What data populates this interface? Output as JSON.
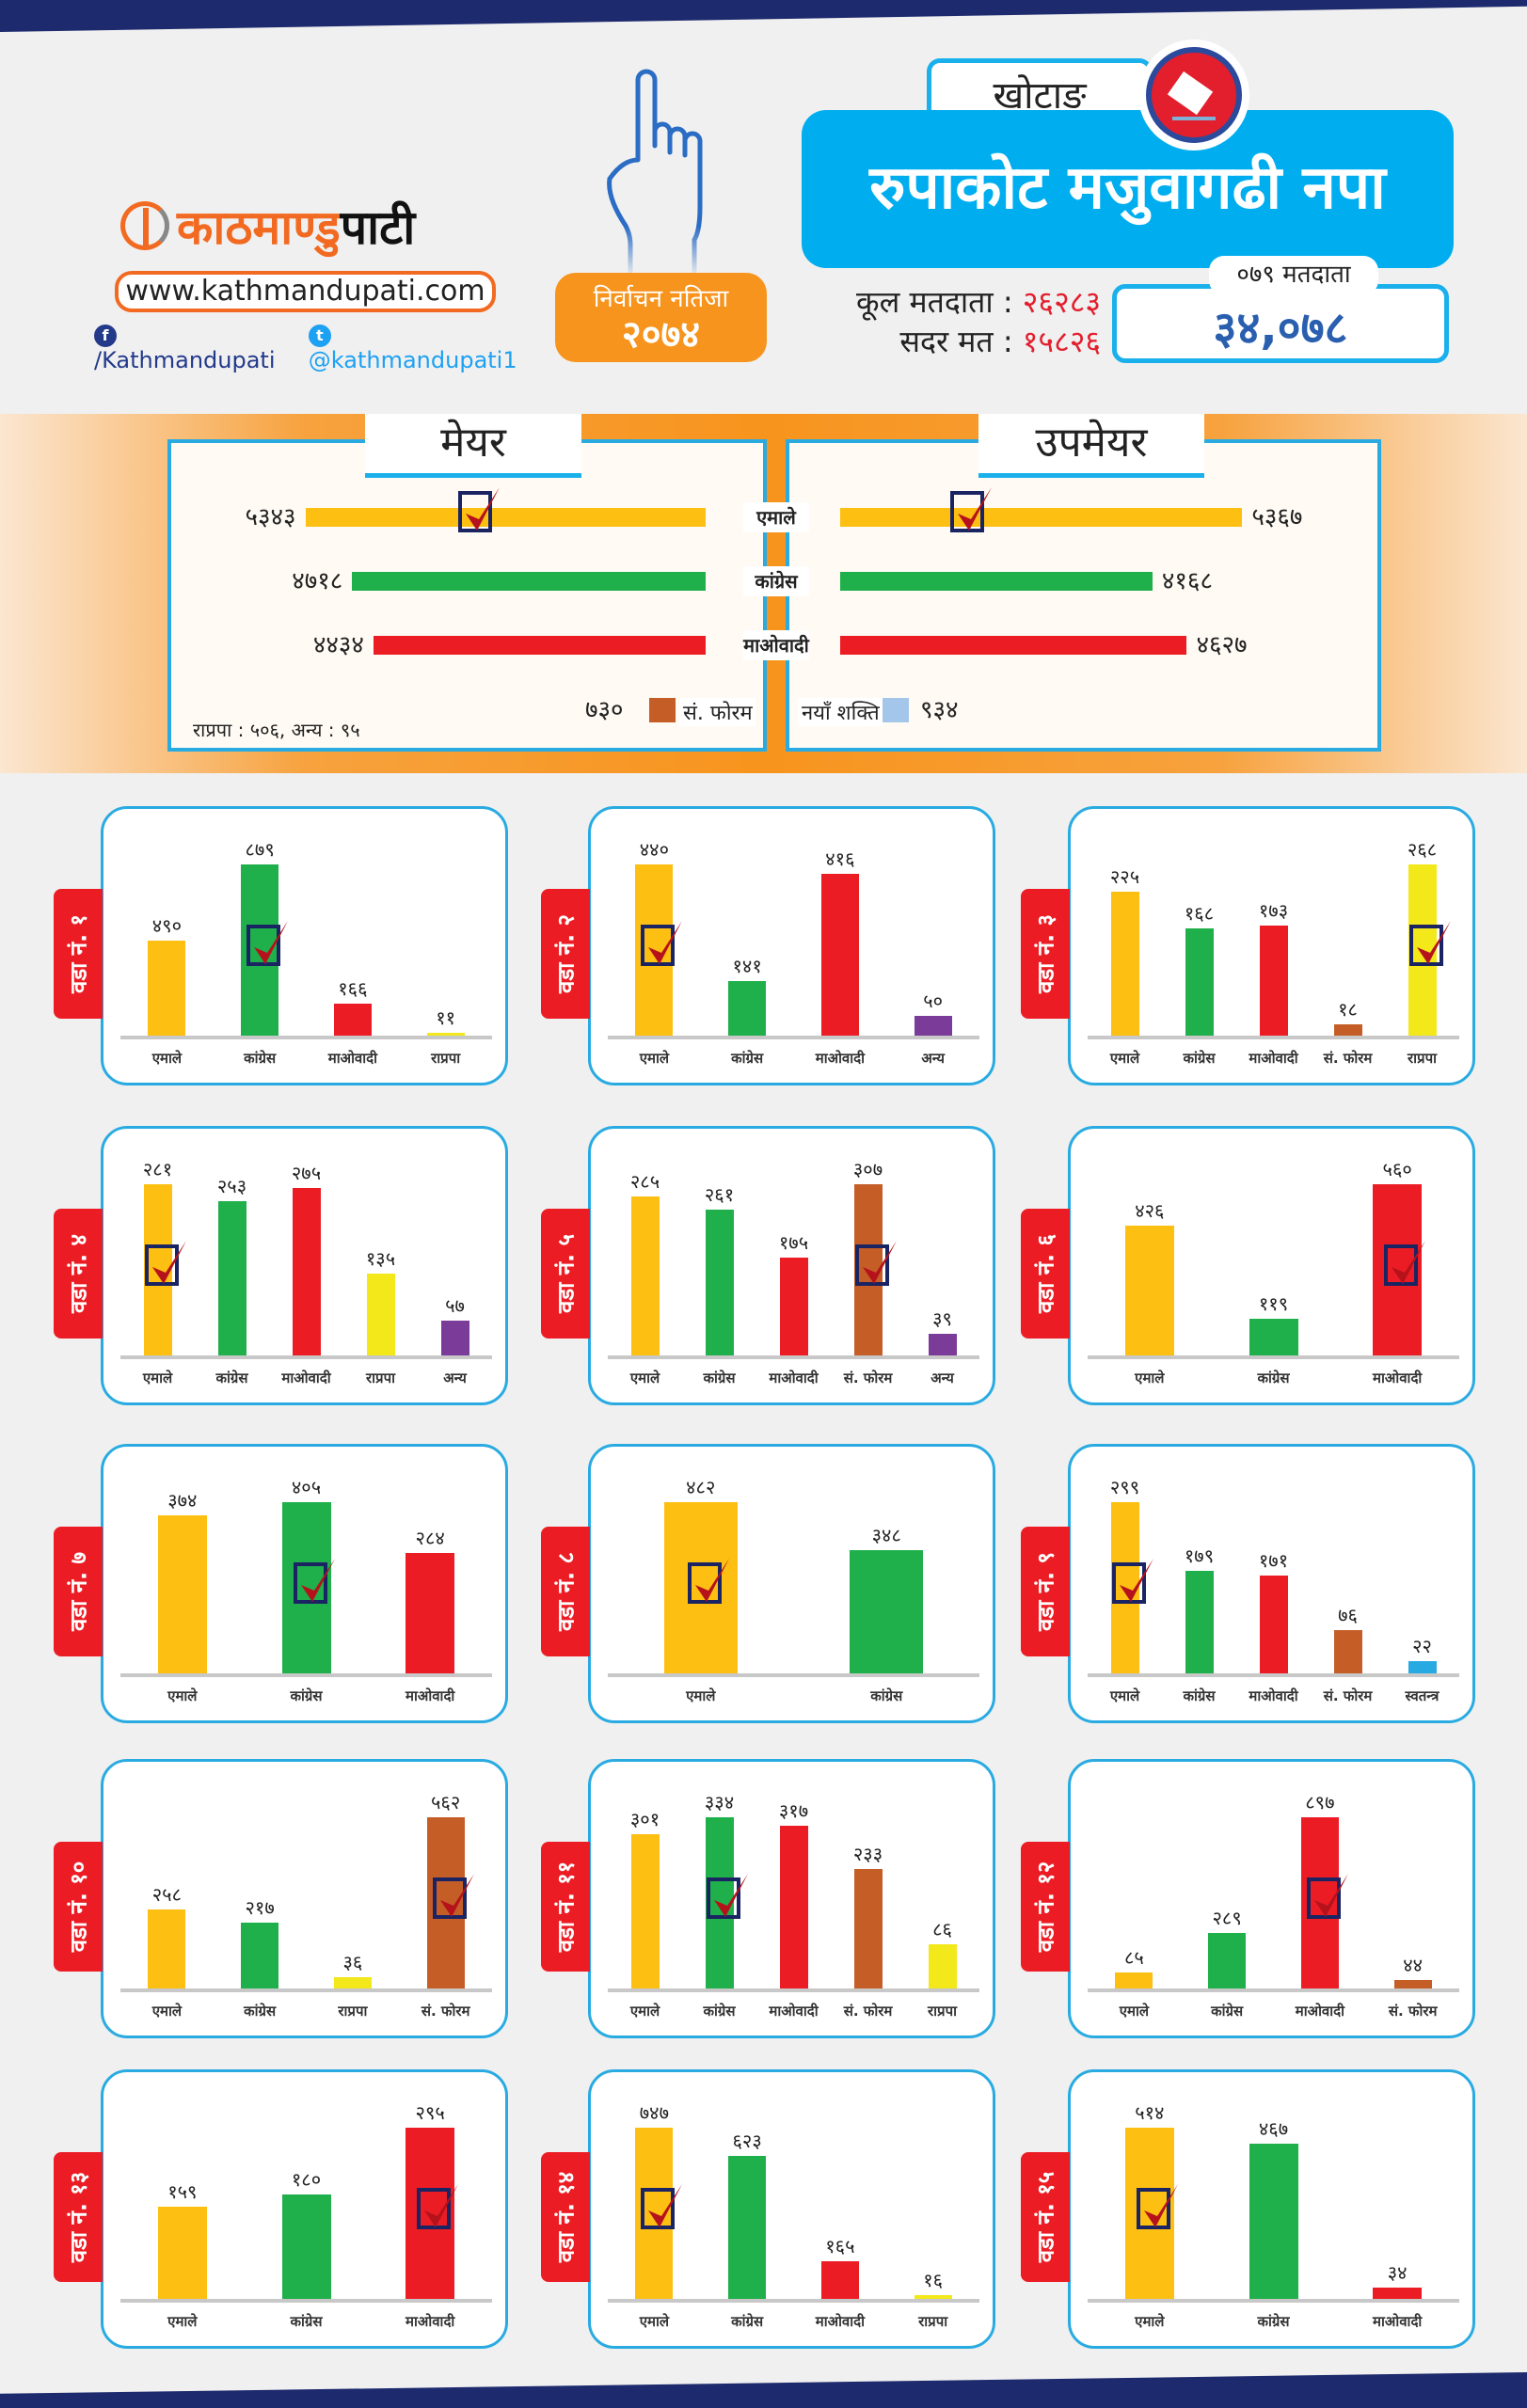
{
  "brand": {
    "name_orange": "काठमाण्डु",
    "name_black": "पाटी",
    "url": "www.kathmandupati.com",
    "facebook": "/Kathmandupati",
    "twitter": "@kathmandupati1"
  },
  "result_badge": {
    "line1": "निर्वाचन नतिजा",
    "line2": "२०७४"
  },
  "district": "खोटाङ",
  "municipality": "रुपाकोट मजुवागढी नपा",
  "stats": {
    "total_label": "कूल मतदाता :",
    "total_value": "२६२८३",
    "valid_label": "सदर मत :",
    "valid_value": "१५८२६"
  },
  "voters_079": {
    "label": "०७९ मतदाता",
    "value": "३४,०७८"
  },
  "colors": {
    "एमाले": "#fdbf12",
    "कांग्रेस": "#1fb04b",
    "माओवादी": "#ec1c24",
    "राप्रपा": "#f2e81a",
    "अन्य": "#7a3b99",
    "सं. फोरम": "#c55d27",
    "स्वतन्त्र": "#27aae1",
    "नयाँ शक्ति": "#a3c6ea",
    "accent": "#00aeef",
    "orange": "#f7941d"
  },
  "icons": [
    "hand-vote-icon",
    "ballot-box-icon",
    "facebook-icon",
    "twitter-icon",
    "check-box-icon"
  ],
  "chart_data": [
    {
      "type": "bar",
      "orientation": "horizontal",
      "title": "मेयर",
      "categories": [
        "एमाले",
        "कांग्रेस",
        "माओवादी"
      ],
      "values": [
        5343,
        4718,
        4434
      ],
      "value_labels": [
        "५३४३",
        "४७१८",
        "४४३४"
      ],
      "winner": 0,
      "extra": {
        "label": "सं. फोरम",
        "value": 730,
        "value_label": "७३०"
      },
      "note": "राप्रपा : ५०६, अन्य : ९५"
    },
    {
      "type": "bar",
      "orientation": "horizontal",
      "title": "उपमेयर",
      "categories": [
        "एमाले",
        "कांग्रेस",
        "माओवादी"
      ],
      "values": [
        5367,
        4168,
        4627
      ],
      "value_labels": [
        "५३६७",
        "४१६८",
        "४६२७"
      ],
      "winner": 0,
      "extra": {
        "label": "नयाँ शक्ति",
        "value": 934,
        "value_label": "९३४"
      }
    },
    {
      "type": "bar",
      "title": "वडा नं. १",
      "categories": [
        "एमाले",
        "कांग्रेस",
        "माओवादी",
        "राप्रपा"
      ],
      "values": [
        490,
        879,
        166,
        11
      ],
      "value_labels": [
        "४९०",
        "८७९",
        "१६६",
        "११"
      ],
      "winner": 1
    },
    {
      "type": "bar",
      "title": "वडा नं. २",
      "categories": [
        "एमाले",
        "कांग्रेस",
        "माओवादी",
        "अन्य"
      ],
      "values": [
        440,
        141,
        416,
        50
      ],
      "value_labels": [
        "४४०",
        "१४१",
        "४१६",
        "५०"
      ],
      "winner": 0
    },
    {
      "type": "bar",
      "title": "वडा नं. ३",
      "categories": [
        "एमाले",
        "कांग्रेस",
        "माओवादी",
        "सं. फोरम",
        "राप्रपा"
      ],
      "values": [
        225,
        168,
        173,
        18,
        268
      ],
      "value_labels": [
        "२२५",
        "१६८",
        "१७३",
        "१८",
        "२६८"
      ],
      "winner": 4
    },
    {
      "type": "bar",
      "title": "वडा नं. ४",
      "categories": [
        "एमाले",
        "कांग्रेस",
        "माओवादी",
        "राप्रपा",
        "अन्य"
      ],
      "values": [
        281,
        253,
        275,
        135,
        57
      ],
      "value_labels": [
        "२८१",
        "२५३",
        "२७५",
        "१३५",
        "५७"
      ],
      "winner": 0
    },
    {
      "type": "bar",
      "title": "वडा नं. ५",
      "categories": [
        "एमाले",
        "कांग्रेस",
        "माओवादी",
        "सं. फोरम",
        "अन्य"
      ],
      "values": [
        285,
        261,
        175,
        307,
        39
      ],
      "value_labels": [
        "२८५",
        "२६१",
        "१७५",
        "३०७",
        "३९"
      ],
      "winner": 3
    },
    {
      "type": "bar",
      "title": "वडा नं. ६",
      "categories": [
        "एमाले",
        "कांग्रेस",
        "माओवादी"
      ],
      "values": [
        426,
        119,
        560
      ],
      "value_labels": [
        "४२६",
        "११९",
        "५६०"
      ],
      "winner": 2
    },
    {
      "type": "bar",
      "title": "वडा नं. ७",
      "categories": [
        "एमाले",
        "कांग्रेस",
        "माओवादी"
      ],
      "values": [
        374,
        405,
        284
      ],
      "value_labels": [
        "३७४",
        "४०५",
        "२८४"
      ],
      "winner": 1
    },
    {
      "type": "bar",
      "title": "वडा नं. ८",
      "categories": [
        "एमाले",
        "कांग्रेस"
      ],
      "values": [
        482,
        348
      ],
      "value_labels": [
        "४८२",
        "३४८"
      ],
      "winner": 0
    },
    {
      "type": "bar",
      "title": "वडा नं. ९",
      "categories": [
        "एमाले",
        "कांग्रेस",
        "माओवादी",
        "सं. फोरम",
        "स्वतन्त्र"
      ],
      "values": [
        299,
        179,
        171,
        76,
        22
      ],
      "value_labels": [
        "२९९",
        "१७९",
        "१७१",
        "७६",
        "२२"
      ],
      "winner": 0
    },
    {
      "type": "bar",
      "title": "वडा नं. १०",
      "categories": [
        "एमाले",
        "कांग्रेस",
        "राप्रपा",
        "सं. फोरम"
      ],
      "values": [
        258,
        217,
        36,
        562
      ],
      "value_labels": [
        "२५८",
        "२१७",
        "३६",
        "५६२"
      ],
      "winner": 3
    },
    {
      "type": "bar",
      "title": "वडा नं. ११",
      "categories": [
        "एमाले",
        "कांग्रेस",
        "माओवादी",
        "सं. फोरम",
        "राप्रपा"
      ],
      "values": [
        301,
        334,
        317,
        233,
        86
      ],
      "value_labels": [
        "३०१",
        "३३४",
        "३१७",
        "२३३",
        "८६"
      ],
      "winner": 1
    },
    {
      "type": "bar",
      "title": "वडा नं. १२",
      "categories": [
        "एमाले",
        "कांग्रेस",
        "माओवादी",
        "सं. फोरम"
      ],
      "values": [
        85,
        289,
        897,
        44
      ],
      "value_labels": [
        "८५",
        "२८९",
        "८९७",
        "४४"
      ],
      "winner": 2
    },
    {
      "type": "bar",
      "title": "वडा नं. १३",
      "categories": [
        "एमाले",
        "कांग्रेस",
        "माओवादी"
      ],
      "values": [
        159,
        180,
        295
      ],
      "value_labels": [
        "१५९",
        "१८०",
        "२९५"
      ],
      "winner": 2
    },
    {
      "type": "bar",
      "title": "वडा नं. १४",
      "categories": [
        "एमाले",
        "कांग्रेस",
        "माओवादी",
        "राप्रपा"
      ],
      "values": [
        747,
        623,
        165,
        16
      ],
      "value_labels": [
        "७४७",
        "६२३",
        "१६५",
        "१६"
      ],
      "winner": 0
    },
    {
      "type": "bar",
      "title": "वडा नं. १५",
      "categories": [
        "एमाले",
        "कांग्रेस",
        "माओवादी"
      ],
      "values": [
        514,
        467,
        34
      ],
      "value_labels": [
        "५१४",
        "४६७",
        "३४"
      ],
      "winner": 0
    }
  ]
}
